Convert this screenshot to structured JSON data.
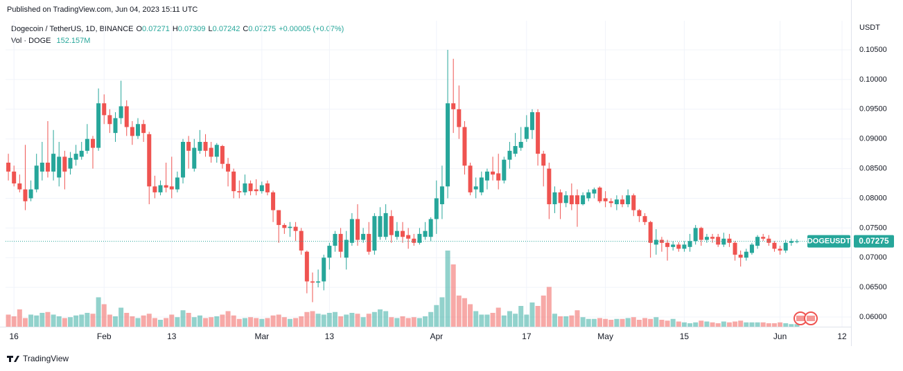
{
  "header": {
    "published": "Published on TradingView.com, Jun 04, 2023 15:11 UTC",
    "footer": "TradingView"
  },
  "legend": {
    "symbol": "Dogecoin / TetherUS, 1D, BINANCE",
    "open_label": "O",
    "high_label": "H",
    "low_label": "L",
    "close_label": "C",
    "change": "+0.00005 (+0.07%)",
    "volume_name": "Vol · DOGE",
    "volume_last_label": "152.157M"
  },
  "chart_data": {
    "type": "candlestick",
    "y_axis_label": "USDT",
    "symbol_tag": "DOGEUSDT",
    "up_color": "#26a69a",
    "down_color": "#ef5350",
    "grid": true,
    "xlim": [
      -0.5,
      149.6
    ],
    "xticks": [
      {
        "value": 1,
        "label": "16"
      },
      {
        "value": 17,
        "label": "Feb"
      },
      {
        "value": 29,
        "label": "13"
      },
      {
        "value": 45,
        "label": "Mar"
      },
      {
        "value": 57,
        "label": "13"
      },
      {
        "value": 76,
        "label": "Apr"
      },
      {
        "value": 92,
        "label": "17"
      },
      {
        "value": 106,
        "label": "May"
      },
      {
        "value": 120,
        "label": "15"
      },
      {
        "value": 137,
        "label": "Jun"
      },
      {
        "value": 148,
        "label": "12"
      }
    ],
    "ylim": [
      0.05837,
      0.1099
    ],
    "yticks": [
      {
        "value": 0.06,
        "label": "0.06000"
      },
      {
        "value": 0.065,
        "label": "0.06500"
      },
      {
        "value": 0.07,
        "label": "0.07000"
      },
      {
        "value": 0.075,
        "label": "0.07500"
      },
      {
        "value": 0.08,
        "label": "0.08000"
      },
      {
        "value": 0.085,
        "label": "0.08500"
      },
      {
        "value": 0.09,
        "label": "0.09000"
      },
      {
        "value": 0.095,
        "label": "0.09500"
      },
      {
        "value": 0.1,
        "label": "0.10000"
      },
      {
        "value": 0.105,
        "label": "0.10500"
      }
    ],
    "open": [
      0.086,
      0.0845,
      0.0825,
      0.0815,
      0.08,
      0.0815,
      0.0845,
      0.086,
      0.0845,
      0.0835,
      0.087,
      0.085,
      0.0865,
      0.087,
      0.088,
      0.09,
      0.0885,
      0.096,
      0.094,
      0.091,
      0.0935,
      0.0955,
      0.092,
      0.0905,
      0.0925,
      0.0908,
      0.082,
      0.081,
      0.0822,
      0.082,
      0.0815,
      0.0835,
      0.0895,
      0.085,
      0.088,
      0.0895,
      0.0885,
      0.087,
      0.0888,
      0.0858,
      0.0845,
      0.0812,
      0.081,
      0.0825,
      0.0815,
      0.0812,
      0.0825,
      0.081,
      0.078,
      0.0755,
      0.075,
      0.0752,
      0.0745,
      0.071,
      0.066,
      0.0658,
      0.066,
      0.07,
      0.072,
      0.074,
      0.07,
      0.0725,
      0.0765,
      0.073,
      0.074,
      0.0712,
      0.0735,
      0.0735,
      0.077,
      0.0735,
      0.0745,
      0.0738,
      0.0732,
      0.0725,
      0.0735,
      0.0735,
      0.0765,
      0.079,
      0.082,
      0.096,
      0.095,
      0.092,
      0.0855,
      0.0815,
      0.081,
      0.083,
      0.0845,
      0.0842,
      0.083,
      0.0865,
      0.0875,
      0.0885,
      0.09,
      0.0915,
      0.0945,
      0.0875,
      0.085,
      0.079,
      0.081,
      0.0792,
      0.0805,
      0.0805,
      0.079,
      0.08,
      0.0808,
      0.0818,
      0.08,
      0.0795,
      0.079,
      0.0798,
      0.079,
      0.0805,
      0.078,
      0.077,
      0.076,
      0.0722,
      0.073,
      0.0725,
      0.0718,
      0.0722,
      0.0715,
      0.0718,
      0.0728,
      0.075,
      0.073,
      0.0735,
      0.0735,
      0.0722,
      0.0732,
      0.0725,
      0.0705,
      0.07,
      0.0708,
      0.072,
      0.0735,
      0.0732,
      0.0725,
      0.0715,
      0.0712,
      0.0725,
      0.07271
    ],
    "high": [
      0.0875,
      0.0855,
      0.084,
      0.089,
      0.083,
      0.0875,
      0.0895,
      0.093,
      0.0915,
      0.0895,
      0.088,
      0.0878,
      0.089,
      0.0895,
      0.0925,
      0.0905,
      0.0985,
      0.0975,
      0.095,
      0.0945,
      0.0998,
      0.0965,
      0.093,
      0.0935,
      0.0932,
      0.0912,
      0.0838,
      0.083,
      0.086,
      0.087,
      0.0845,
      0.09,
      0.0905,
      0.09,
      0.0915,
      0.0908,
      0.0895,
      0.0893,
      0.089,
      0.0868,
      0.085,
      0.083,
      0.084,
      0.083,
      0.0832,
      0.0828,
      0.083,
      0.0813,
      0.078,
      0.0758,
      0.076,
      0.076,
      0.075,
      0.0712,
      0.0675,
      0.068,
      0.0705,
      0.0725,
      0.0745,
      0.075,
      0.0745,
      0.0775,
      0.079,
      0.075,
      0.076,
      0.0775,
      0.0785,
      0.079,
      0.078,
      0.076,
      0.076,
      0.075,
      0.074,
      0.075,
      0.076,
      0.0768,
      0.083,
      0.0855,
      0.105,
      0.1035,
      0.099,
      0.093,
      0.086,
      0.0835,
      0.0845,
      0.085,
      0.087,
      0.0875,
      0.087,
      0.0895,
      0.091,
      0.092,
      0.094,
      0.095,
      0.095,
      0.088,
      0.086,
      0.082,
      0.0815,
      0.0812,
      0.0825,
      0.0815,
      0.081,
      0.0815,
      0.0818,
      0.082,
      0.0812,
      0.08,
      0.0805,
      0.0805,
      0.0815,
      0.0808,
      0.0782,
      0.0775,
      0.0762,
      0.0748,
      0.0735,
      0.073,
      0.0728,
      0.0726,
      0.0728,
      0.074,
      0.0755,
      0.0752,
      0.074,
      0.074,
      0.074,
      0.0742,
      0.074,
      0.0728,
      0.0712,
      0.0715,
      0.0725,
      0.0738,
      0.074,
      0.0738,
      0.0728,
      0.072,
      0.073,
      0.0732,
      0.07309
    ],
    "low": [
      0.083,
      0.082,
      0.081,
      0.078,
      0.0795,
      0.081,
      0.083,
      0.0835,
      0.083,
      0.082,
      0.0815,
      0.084,
      0.0855,
      0.0865,
      0.0875,
      0.085,
      0.088,
      0.0925,
      0.091,
      0.0895,
      0.0925,
      0.0905,
      0.089,
      0.09,
      0.0895,
      0.079,
      0.08,
      0.0805,
      0.081,
      0.08,
      0.081,
      0.0825,
      0.085,
      0.0845,
      0.0875,
      0.087,
      0.086,
      0.086,
      0.085,
      0.082,
      0.08,
      0.08,
      0.0805,
      0.0805,
      0.0805,
      0.0808,
      0.0805,
      0.076,
      0.0725,
      0.074,
      0.0735,
      0.0728,
      0.0705,
      0.064,
      0.0625,
      0.065,
      0.0645,
      0.068,
      0.071,
      0.07,
      0.068,
      0.072,
      0.072,
      0.0725,
      0.0705,
      0.0705,
      0.073,
      0.073,
      0.0725,
      0.073,
      0.0725,
      0.0715,
      0.072,
      0.0722,
      0.073,
      0.0728,
      0.074,
      0.0765,
      0.08,
      0.091,
      0.09,
      0.084,
      0.0805,
      0.08,
      0.0805,
      0.0815,
      0.083,
      0.0815,
      0.0825,
      0.085,
      0.087,
      0.088,
      0.0895,
      0.09,
      0.0855,
      0.082,
      0.0765,
      0.0775,
      0.0765,
      0.0785,
      0.078,
      0.0752,
      0.0788,
      0.0795,
      0.08,
      0.0792,
      0.0785,
      0.0785,
      0.078,
      0.0785,
      0.0785,
      0.077,
      0.076,
      0.0755,
      0.07,
      0.0705,
      0.071,
      0.0695,
      0.0712,
      0.071,
      0.071,
      0.071,
      0.0722,
      0.072,
      0.0725,
      0.0725,
      0.0718,
      0.0718,
      0.0718,
      0.0695,
      0.0685,
      0.0695,
      0.0705,
      0.0715,
      0.0728,
      0.072,
      0.071,
      0.0705,
      0.0708,
      0.072,
      0.07242
    ],
    "close": [
      0.0845,
      0.0825,
      0.0815,
      0.0795,
      0.0815,
      0.0855,
      0.086,
      0.0845,
      0.0875,
      0.087,
      0.0845,
      0.0868,
      0.0875,
      0.088,
      0.09,
      0.0885,
      0.096,
      0.094,
      0.0925,
      0.0935,
      0.0955,
      0.092,
      0.0905,
      0.0925,
      0.091,
      0.082,
      0.081,
      0.0822,
      0.0818,
      0.0815,
      0.0835,
      0.0895,
      0.088,
      0.0885,
      0.0895,
      0.088,
      0.087,
      0.089,
      0.0858,
      0.0845,
      0.0812,
      0.081,
      0.0825,
      0.0812,
      0.0812,
      0.0822,
      0.081,
      0.078,
      0.0755,
      0.075,
      0.0752,
      0.0745,
      0.0712,
      0.066,
      0.0658,
      0.066,
      0.07,
      0.072,
      0.074,
      0.071,
      0.073,
      0.0765,
      0.073,
      0.074,
      0.071,
      0.077,
      0.077,
      0.0775,
      0.0738,
      0.0745,
      0.0735,
      0.0732,
      0.0725,
      0.074,
      0.0745,
      0.0765,
      0.08,
      0.082,
      0.096,
      0.095,
      0.092,
      0.0855,
      0.081,
      0.082,
      0.0835,
      0.0845,
      0.084,
      0.083,
      0.0865,
      0.088,
      0.0888,
      0.0895,
      0.092,
      0.0945,
      0.0875,
      0.0855,
      0.079,
      0.081,
      0.0792,
      0.0805,
      0.079,
      0.079,
      0.0805,
      0.081,
      0.0815,
      0.0795,
      0.0795,
      0.0792,
      0.0798,
      0.079,
      0.0805,
      0.078,
      0.077,
      0.076,
      0.0725,
      0.073,
      0.0725,
      0.0718,
      0.0722,
      0.0715,
      0.0722,
      0.0728,
      0.075,
      0.073,
      0.0735,
      0.0732,
      0.0722,
      0.0732,
      0.0725,
      0.0705,
      0.07,
      0.071,
      0.0722,
      0.0735,
      0.0732,
      0.0725,
      0.0715,
      0.0712,
      0.0725,
      0.0728,
      0.07275
    ],
    "volume": [
      700,
      600,
      1000,
      500,
      700,
      650,
      800,
      850,
      700,
      600,
      500,
      550,
      650,
      700,
      800,
      750,
      1700,
      1300,
      700,
      600,
      1100,
      800,
      600,
      500,
      650,
      750,
      500,
      400,
      500,
      700,
      550,
      950,
      800,
      550,
      650,
      500,
      550,
      600,
      700,
      900,
      650,
      450,
      500,
      550,
      500,
      450,
      500,
      650,
      700,
      550,
      450,
      500,
      600,
      850,
      900,
      750,
      700,
      800,
      850,
      600,
      700,
      800,
      750,
      550,
      750,
      850,
      1000,
      900,
      550,
      500,
      600,
      500,
      550,
      500,
      600,
      850,
      1250,
      1700,
      4400,
      3600,
      1800,
      1650,
      1300,
      900,
      700,
      700,
      800,
      1100,
      650,
      900,
      750,
      1200,
      700,
      1400,
      1200,
      1800,
      2300,
      750,
      600,
      600,
      650,
      950,
      550,
      450,
      450,
      500,
      450,
      400,
      450,
      450,
      500,
      550,
      400,
      500,
      450,
      550,
      400,
      350,
      450,
      300,
      250,
      200,
      250,
      350,
      300,
      250,
      200,
      300,
      250,
      300,
      350,
      250,
      250,
      250,
      250,
      200,
      200,
      250,
      200,
      150,
      152.157
    ]
  }
}
